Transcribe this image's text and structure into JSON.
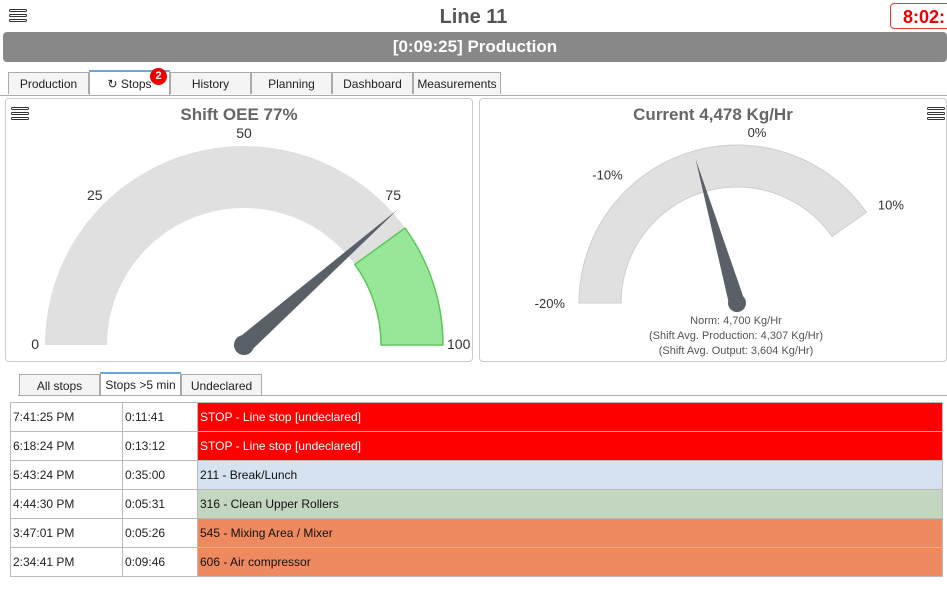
{
  "header": {
    "title": "Line 11",
    "clock": "8:02:",
    "status": "[0:09:25] Production"
  },
  "tabs": [
    {
      "label": "Production"
    },
    {
      "label": "Stops",
      "icon": "refresh-icon",
      "badge": "2"
    },
    {
      "label": "History"
    },
    {
      "label": "Planning"
    },
    {
      "label": "Dashboard"
    },
    {
      "label": "Measurements"
    }
  ],
  "oee_gauge": {
    "title": "Shift OEE 77%",
    "min": 0,
    "max": 100,
    "value": 77,
    "green_from": 80,
    "ticks": [
      {
        "value": 0,
        "label": "0"
      },
      {
        "value": 25,
        "label": "25"
      },
      {
        "value": 50,
        "label": "50"
      },
      {
        "value": 75,
        "label": "75"
      },
      {
        "value": 100,
        "label": "100"
      }
    ],
    "colors": {
      "band": "#e0e0e0",
      "green": "#98e698",
      "green_border": "#5cc85c",
      "needle": "#5a6068"
    }
  },
  "rate_gauge": {
    "title": "Current 4,478 Kg/Hr",
    "min": -20,
    "max": 10,
    "value": -4.7,
    "ticks": [
      {
        "value": -20,
        "label": "-20%"
      },
      {
        "value": -10,
        "label": "-10%"
      },
      {
        "value": 0,
        "label": "0%"
      },
      {
        "value": 10,
        "label": "10%"
      }
    ],
    "notes": {
      "norm": "Norm: 4,700 Kg/Hr",
      "avg_production": "(Shift Avg. Production: 4,307 Kg/Hr)",
      "avg_output": "(Shift Avg. Output: 3,604 Kg/Hr)"
    }
  },
  "subtabs": [
    {
      "label": "All stops"
    },
    {
      "label": "Stops >5 min"
    },
    {
      "label": "Undeclared"
    }
  ],
  "stops": [
    {
      "time": "7:41:25 PM",
      "duration": "0:11:41",
      "reason": "STOP - Line stop [undeclared]",
      "color": "#ff0000",
      "text_color": "#ffffff"
    },
    {
      "time": "6:18:24 PM",
      "duration": "0:13:12",
      "reason": "STOP - Line stop [undeclared]",
      "color": "#ff0000",
      "text_color": "#ffffff"
    },
    {
      "time": "5:43:24 PM",
      "duration": "0:35:00",
      "reason": "211 - Break/Lunch",
      "color": "#d6e2f0",
      "text_color": "#111111"
    },
    {
      "time": "4:44:30 PM",
      "duration": "0:05:31",
      "reason": "316 - Clean Upper Rollers",
      "color": "#c3d6c0",
      "text_color": "#111111"
    },
    {
      "time": "3:47:01 PM",
      "duration": "0:05:26",
      "reason": "545 - Mixing Area / Mixer",
      "color": "#ef8a60",
      "text_color": "#111111"
    },
    {
      "time": "2:34:41 PM",
      "duration": "0:09:46",
      "reason": "606 - Air compressor",
      "color": "#ef8a60",
      "text_color": "#111111"
    }
  ]
}
